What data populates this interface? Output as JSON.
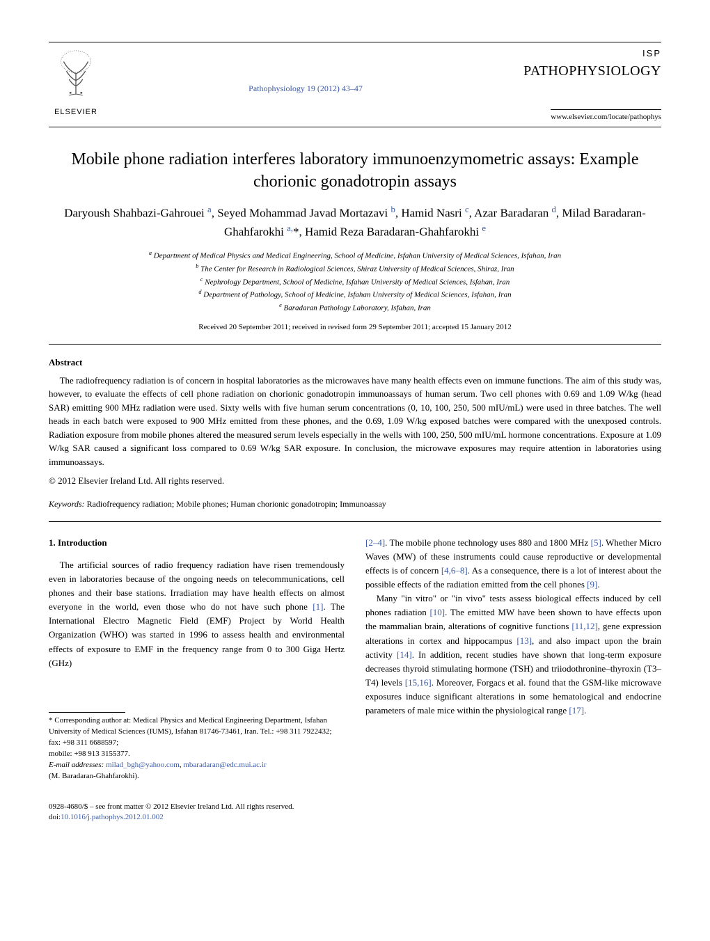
{
  "header": {
    "publisher": "ELSEVIER",
    "citation_line": "Pathophysiology 19 (2012) 43–47",
    "isp": "ISP",
    "journal_name": "PATHOPHYSIOLOGY",
    "journal_url": "www.elsevier.com/locate/pathophys"
  },
  "title": "Mobile phone radiation interferes laboratory immunoenzymometric assays: Example chorionic gonadotropin assays",
  "authors_html": "Daryoush Shahbazi-Gahrouei <sup class='sup-link'>a</sup>, Seyed Mohammad Javad Mortazavi <sup class='sup-link'>b</sup>, Hamid Nasri <sup class='sup-link'>c</sup>, Azar Baradaran <sup class='sup-link'>d</sup>, Milad Baradaran-Ghahfarokhi <sup class='sup-link'>a,</sup>*, Hamid Reza Baradaran-Ghahfarokhi <sup class='sup-link'>e</sup>",
  "affiliations": {
    "a": "Department of Medical Physics and Medical Engineering, School of Medicine, Isfahan University of Medical Sciences, Isfahan, Iran",
    "b": "The Center for Research in Radiological Sciences, Shiraz University of Medical Sciences, Shiraz, Iran",
    "c": "Nephrology Department, School of Medicine, Isfahan University of Medical Sciences, Isfahan, Iran",
    "d": "Department of Pathology, School of Medicine, Isfahan University of Medical Sciences, Isfahan, Iran",
    "e": "Baradaran Pathology Laboratory, Isfahan, Iran"
  },
  "dates": "Received 20 September 2011; received in revised form 29 September 2011; accepted 15 January 2012",
  "abstract": {
    "label": "Abstract",
    "text": "The radiofrequency radiation is of concern in hospital laboratories as the microwaves have many health effects even on immune functions. The aim of this study was, however, to evaluate the effects of cell phone radiation on chorionic gonadotropin immunoassays of human serum. Two cell phones with 0.69 and 1.09 W/kg (head SAR) emitting 900 MHz radiation were used. Sixty wells with five human serum concentrations (0, 10, 100, 250, 500 mIU/mL) were used in three batches. The well heads in each batch were exposed to 900 MHz emitted from these phones, and the 0.69, 1.09 W/kg exposed batches were compared with the unexposed controls. Radiation exposure from mobile phones altered the measured serum levels especially in the wells with 100, 250, 500 mIU/mL hormone concentrations. Exposure at 1.09 W/kg SAR caused a significant loss compared to 0.69 W/kg SAR exposure. In conclusion, the microwave exposures may require attention in laboratories using immunoassays.",
    "copyright": "© 2012 Elsevier Ireland Ltd. All rights reserved."
  },
  "keywords": {
    "label": "Keywords:",
    "text": " Radiofrequency radiation; Mobile phones; Human chorionic gonadotropin; Immunoassay"
  },
  "section1": {
    "heading": "1. Introduction",
    "left_col_html": "The artificial sources of radio frequency radiation have risen tremendously even in laboratories because of the ongoing needs on telecommunications, cell phones and their base stations. Irradiation may have health effects on almost everyone in the world, even those who do not have such phone <span class='ref-link'>[1]</span>. The International Electro Magnetic Field (EMF) Project by World Health Organization (WHO) was started in 1996 to assess health and environmental effects of exposure to EMF in the frequency range from 0 to 300 Giga Hertz (GHz)",
    "right_col_p1_html": "<span class='ref-link'>[2–4]</span>. The mobile phone technology uses 880 and 1800 MHz <span class='ref-link'>[5]</span>. Whether Micro Waves (MW) of these instruments could cause reproductive or developmental effects is of concern <span class='ref-link'>[4,6–8]</span>. As a consequence, there is a lot of interest about the possible effects of the radiation emitted from the cell phones <span class='ref-link'>[9]</span>.",
    "right_col_p2_html": "Many \"in vitro\" or \"in vivo\" tests assess biological effects induced by cell phones radiation <span class='ref-link'>[10]</span>. The emitted MW have been shown to have effects upon the mammalian brain, alterations of cognitive functions <span class='ref-link'>[11,12]</span>, gene expression alterations in cortex and hippocampus <span class='ref-link'>[13]</span>, and also impact upon the brain activity <span class='ref-link'>[14]</span>. In addition, recent studies have shown that long-term exposure decreases thyroid stimulating hormone (TSH) and triiodothronine–thyroxin (T3–T4) levels <span class='ref-link'>[15,16]</span>. Moreover, Forgacs et al. found that the GSM-like microwave exposures induce significant alterations in some hematological and endocrine parameters of male mice within the physiological range <span class='ref-link'>[17]</span>."
  },
  "footnotes": {
    "corr": "* Corresponding author at: Medical Physics and Medical Engineering Department, Isfahan University of Medical Sciences (IUMS), Isfahan 81746-73461, Iran. Tel.: +98 311 7922432; fax: +98 311 6688597;",
    "mobile": "mobile: +98 913 3155377.",
    "email_label": "E-mail addresses:",
    "email1": "milad_bgh@yahoo.com",
    "email2": "mbaradaran@edc.mui.ac.ir",
    "email_suffix": "(M. Baradaran-Ghahfarokhi)."
  },
  "bottom": {
    "issn": "0928-4680/$ – see front matter © 2012 Elsevier Ireland Ltd. All rights reserved.",
    "doi_label": "doi:",
    "doi": "10.1016/j.pathophys.2012.01.002"
  },
  "colors": {
    "link": "#3a5aa8",
    "text": "#000000",
    "background": "#ffffff",
    "elsevier_orange": "#e8730f"
  }
}
